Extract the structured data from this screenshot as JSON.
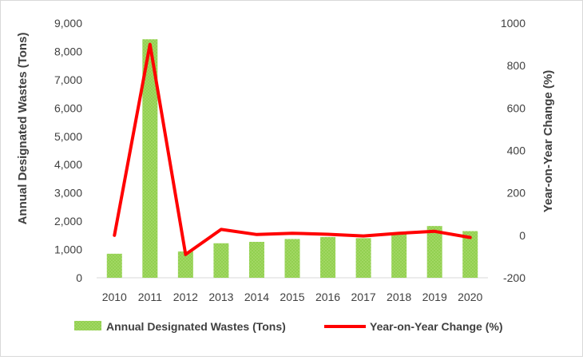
{
  "colors": {
    "bar": "#92d050",
    "bar_hatch": "#b4e07a",
    "line": "#ff0000",
    "text": "#404040",
    "axis": "#d9d9d9"
  },
  "chart_data": {
    "type": "bar+line",
    "title": "",
    "categories": [
      "2010",
      "2011",
      "2012",
      "2013",
      "2014",
      "2015",
      "2016",
      "2017",
      "2018",
      "2019",
      "2020"
    ],
    "series": [
      {
        "name": "Annual Designated Wastes (Tons)",
        "type": "bar",
        "axis": "left",
        "values": [
          850,
          8430,
          930,
          1220,
          1270,
          1370,
          1440,
          1400,
          1550,
          1830,
          1650
        ]
      },
      {
        "name": "Year-on-Year Change (%)",
        "type": "line",
        "axis": "right",
        "values": [
          0,
          900,
          -90,
          28,
          4,
          10,
          5,
          -3,
          10,
          19,
          -10
        ]
      }
    ],
    "ylabel_left": "Annual Designated Wastes (Tons)",
    "ylabel_right": "Year-on-Year Change (%)",
    "ylim_left": [
      0,
      9000
    ],
    "ylim_right": [
      -200,
      1000
    ],
    "yticks_left": [
      "0",
      "1,000",
      "2,000",
      "3,000",
      "4,000",
      "5,000",
      "6,000",
      "7,000",
      "8,000",
      "9,000"
    ],
    "yticks_right": [
      "-200",
      "0",
      "200",
      "400",
      "600",
      "800",
      "1000"
    ],
    "legend_position": "bottom",
    "grid": false
  }
}
